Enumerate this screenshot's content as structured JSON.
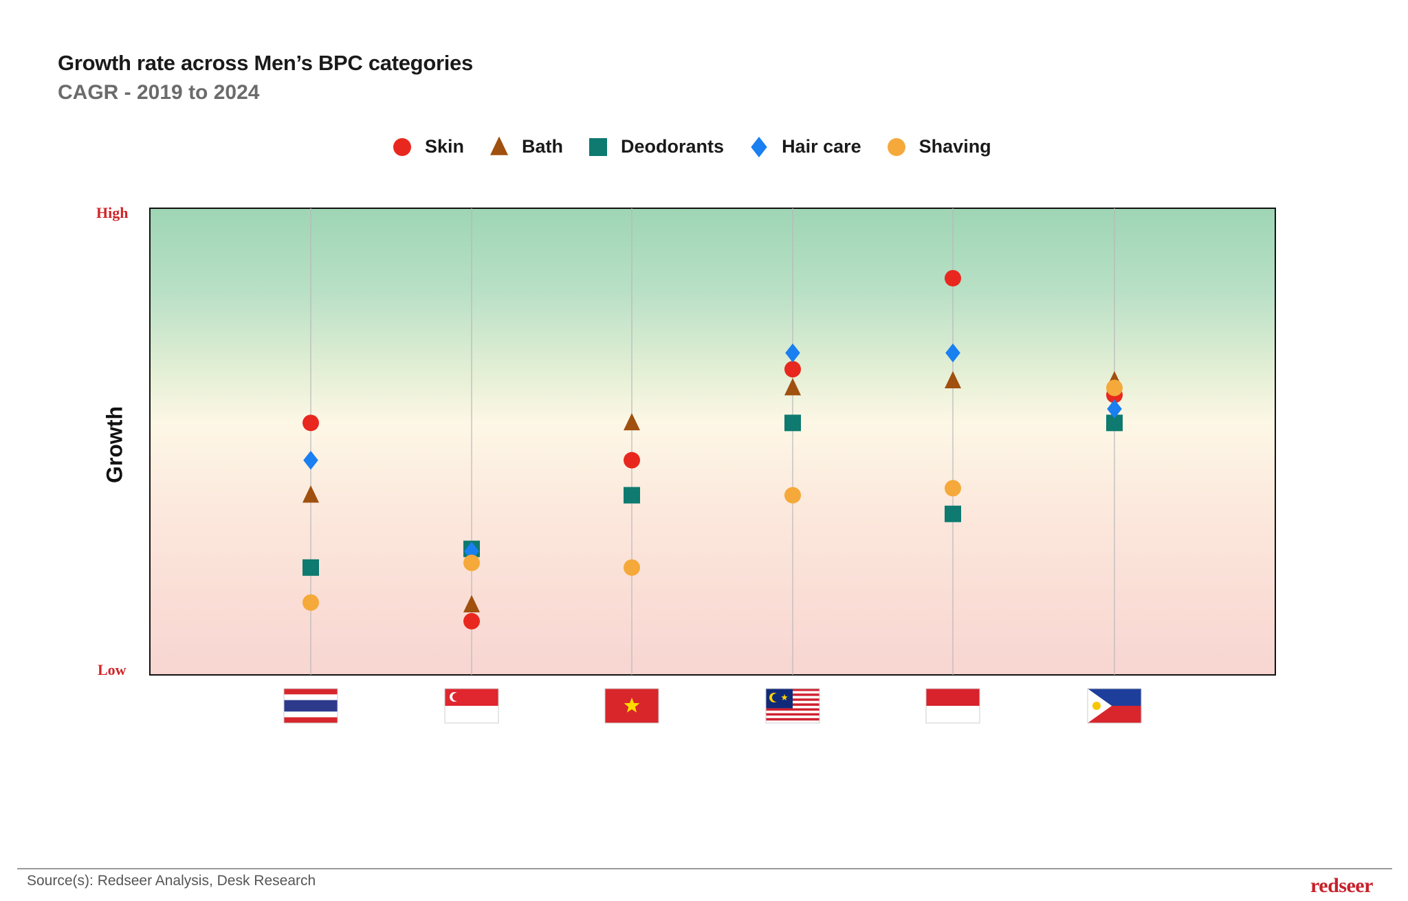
{
  "chart_data": {
    "type": "scatter",
    "title": "Growth rate across Men’s BPC categories",
    "subtitle": "CAGR - 2019 to 2024",
    "ylabel": "Growth",
    "y_high_label": "High",
    "y_low_label": "Low",
    "ylim": [
      0,
      100
    ],
    "grid": "vertical lines at each category",
    "legend_position": "top-center",
    "categories": [
      "thailand-flag",
      "singapore-flag",
      "vietnam-flag",
      "malaysia-flag",
      "indonesia-flag",
      "philippines-flag"
    ],
    "series": [
      {
        "name": "Skin",
        "marker": "circle",
        "color": "#e8281e",
        "values": [
          54,
          11.5,
          46,
          65.5,
          85,
          60
        ]
      },
      {
        "name": "Bath",
        "marker": "triangle",
        "color": "#a0500f",
        "values": [
          38.5,
          15,
          54,
          61.5,
          63,
          63
        ]
      },
      {
        "name": "Deodorants",
        "marker": "square",
        "color": "#0e7a70",
        "values": [
          23,
          27,
          38.5,
          54,
          34.5,
          54
        ]
      },
      {
        "name": "Hair care",
        "marker": "diamond",
        "color": "#1a7ff0",
        "values": [
          46,
          26.5,
          null,
          69,
          69,
          57
        ]
      },
      {
        "name": "Shaving",
        "marker": "circle",
        "color": "#f5a93a",
        "values": [
          15.5,
          24,
          23,
          38.5,
          40,
          61.5
        ]
      }
    ]
  },
  "footer": {
    "source": "Source(s): Redseer Analysis, Desk Research",
    "logo": "redseer"
  }
}
